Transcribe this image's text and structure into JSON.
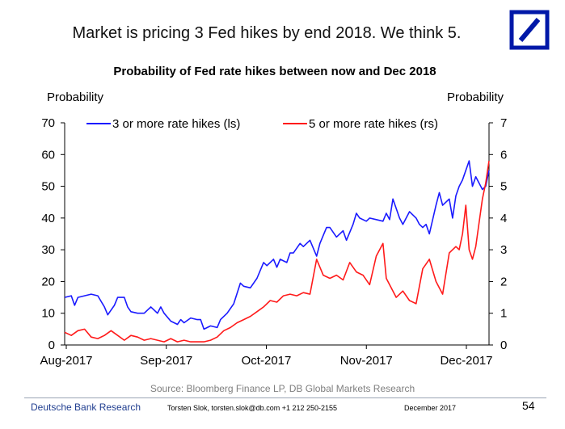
{
  "headline": "Market is pricing 3 Fed hikes by end 2018. We think 5.",
  "logo_icon": "deutsche-bank-slash-logo",
  "colors": {
    "series1": "#1a1aff",
    "series2": "#ff1a1a",
    "brand": "#0018a8"
  },
  "chart_data": {
    "type": "line",
    "title": "Probability of Fed rate hikes between now and Dec 2018",
    "ylabel_left": "Probability",
    "ylabel_right": "Probability",
    "x_ticks": [
      "Aug-2017",
      "Sep-2017",
      "Oct-2017",
      "Nov-2017",
      "Dec-2017"
    ],
    "x_range": [
      0,
      128
    ],
    "ylim_left": [
      0,
      70
    ],
    "ylim_right": [
      0,
      7
    ],
    "y_ticks_left": [
      0,
      10,
      20,
      30,
      40,
      50,
      60,
      70
    ],
    "y_ticks_right": [
      0,
      1,
      2,
      3,
      4,
      5,
      6,
      7
    ],
    "legend_placement": "top",
    "series": [
      {
        "name": "3 or more rate hikes (ls)",
        "axis": "left",
        "x": [
          0,
          2,
          3,
          4,
          6,
          8,
          10,
          12,
          13,
          15,
          16,
          18,
          19,
          20,
          22,
          24,
          26,
          28,
          29,
          30,
          32,
          34,
          35,
          36,
          38,
          40,
          41,
          42,
          44,
          46,
          47,
          49,
          51,
          53,
          54,
          56,
          58,
          60,
          61,
          63,
          64,
          65,
          67,
          68,
          69,
          71,
          72,
          74,
          76,
          77,
          79,
          80,
          82,
          84,
          85,
          87,
          88,
          89,
          91,
          92,
          94,
          96,
          97,
          98,
          99,
          101,
          102,
          104,
          106,
          107,
          108,
          109,
          110,
          112,
          113,
          114,
          116,
          117,
          118,
          119,
          120,
          122,
          123,
          124,
          126,
          127,
          128
        ],
        "y": [
          15,
          15.5,
          12.5,
          15,
          15.5,
          16,
          15.5,
          12,
          9.5,
          12.5,
          15,
          15,
          12,
          10.5,
          10,
          10,
          12,
          10,
          12,
          10,
          7.5,
          6.5,
          8,
          7,
          8.5,
          8,
          8,
          5,
          6,
          5.5,
          8,
          10,
          13,
          19.5,
          18.5,
          18,
          21,
          26,
          25,
          27,
          24.5,
          27,
          26,
          29,
          29,
          32,
          31,
          33,
          28,
          32,
          37,
          37,
          34,
          36,
          33,
          38,
          41.5,
          40,
          39,
          40,
          39.5,
          39,
          41.5,
          39.5,
          46,
          40,
          38,
          42,
          40,
          38,
          37,
          38,
          35,
          44,
          48,
          44,
          46,
          40,
          47,
          50,
          52,
          58,
          50,
          53,
          49,
          50,
          55
        ]
      },
      {
        "name": "5 or more rate hikes (rs)",
        "axis": "right",
        "x": [
          0,
          2,
          4,
          6,
          8,
          10,
          12,
          14,
          16,
          18,
          20,
          22,
          24,
          26,
          28,
          30,
          32,
          34,
          36,
          38,
          40,
          42,
          44,
          46,
          48,
          50,
          52,
          54,
          56,
          58,
          60,
          62,
          64,
          66,
          68,
          70,
          72,
          74,
          76,
          78,
          80,
          82,
          84,
          86,
          88,
          90,
          92,
          94,
          96,
          97,
          98,
          100,
          102,
          104,
          106,
          108,
          110,
          112,
          114,
          116,
          118,
          119,
          120,
          121,
          122,
          123,
          124,
          126,
          127,
          128
        ],
        "y": [
          0.4,
          0.3,
          0.45,
          0.5,
          0.25,
          0.2,
          0.3,
          0.45,
          0.3,
          0.15,
          0.3,
          0.25,
          0.15,
          0.2,
          0.15,
          0.1,
          0.2,
          0.1,
          0.15,
          0.1,
          0.1,
          0.1,
          0.15,
          0.25,
          0.45,
          0.55,
          0.7,
          0.8,
          0.9,
          1.05,
          1.2,
          1.4,
          1.35,
          1.55,
          1.6,
          1.55,
          1.65,
          1.6,
          2.7,
          2.2,
          2.1,
          2.2,
          2.05,
          2.6,
          2.3,
          2.2,
          1.9,
          2.8,
          3.2,
          2.1,
          1.9,
          1.5,
          1.7,
          1.4,
          1.3,
          2.4,
          2.7,
          2.0,
          1.6,
          2.9,
          3.1,
          3.0,
          3.5,
          4.4,
          3.0,
          2.7,
          3.1,
          4.6,
          5.1,
          5.8
        ]
      }
    ]
  },
  "source": "Source: Bloomberg Finance LP, DB Global Markets Research",
  "footer": {
    "brand": "Deutsche Bank Research",
    "author": "Torsten Slok, torsten.slok@db.com +1 212 250-2155",
    "date": "December 2017",
    "page": "54"
  }
}
